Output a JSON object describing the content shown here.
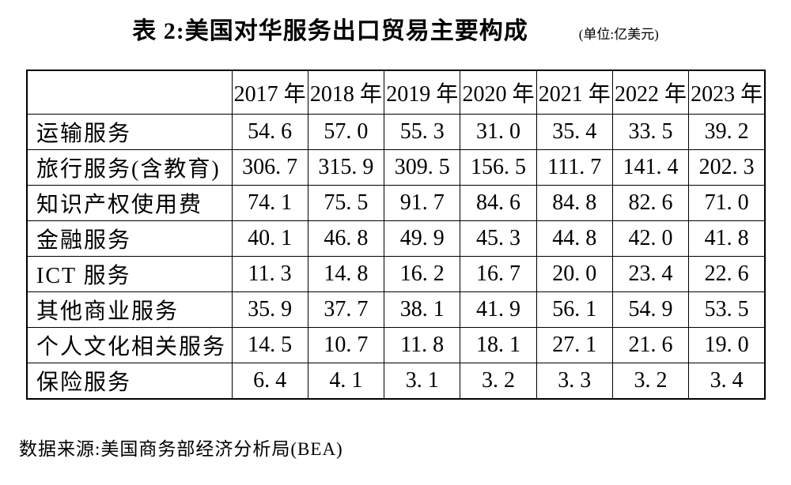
{
  "title": "表 2:美国对华服务出口贸易主要构成",
  "unit_note": "(单位:亿美元)",
  "source_note": "数据来源:美国商务部经济分析局(BEA)",
  "colors": {
    "text": "#000000",
    "background": "#ffffff",
    "border": "#000000"
  },
  "chart_data": {
    "type": "table",
    "title": "表 2:美国对华服务出口贸易主要构成",
    "unit": "亿美元",
    "corner_header": "",
    "columns": [
      "2017 年",
      "2018 年",
      "2019 年",
      "2020 年",
      "2021 年",
      "2022 年",
      "2023 年"
    ],
    "rows": [
      {
        "label": "运输服务",
        "values": [
          54.6,
          57.0,
          55.3,
          31.0,
          35.4,
          33.5,
          39.2
        ]
      },
      {
        "label": "旅行服务(含教育)",
        "values": [
          306.7,
          315.9,
          309.5,
          156.5,
          111.7,
          141.4,
          202.3
        ]
      },
      {
        "label": "知识产权使用费",
        "values": [
          74.1,
          75.5,
          91.7,
          84.6,
          84.8,
          82.6,
          71.0
        ]
      },
      {
        "label": "金融服务",
        "values": [
          40.1,
          46.8,
          49.9,
          45.3,
          44.8,
          42.0,
          41.8
        ]
      },
      {
        "label": "ICT 服务",
        "values": [
          11.3,
          14.8,
          16.2,
          16.7,
          20.0,
          23.4,
          22.6
        ]
      },
      {
        "label": "其他商业服务",
        "values": [
          35.9,
          37.7,
          38.1,
          41.9,
          56.1,
          54.9,
          53.5
        ]
      },
      {
        "label": "个人文化相关服务",
        "values": [
          14.5,
          10.7,
          11.8,
          18.1,
          27.1,
          21.6,
          19.0
        ]
      },
      {
        "label": "保险服务",
        "values": [
          6.4,
          4.1,
          3.1,
          3.2,
          3.3,
          3.2,
          3.4
        ]
      }
    ],
    "source": "数据来源:美国商务部经济分析局(BEA)",
    "number_format": "one-decimal-with-space-after-point"
  }
}
